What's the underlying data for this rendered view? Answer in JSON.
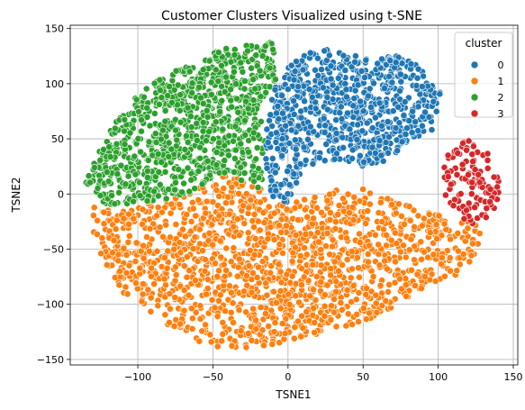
{
  "chart_data": {
    "type": "scatter",
    "title": "Customer Clusters Visualized using t-SNE",
    "xlabel": "TSNE1",
    "ylabel": "TSNE2",
    "xlim": [
      -145,
      153
    ],
    "ylim": [
      -155,
      153
    ],
    "xticks": [
      -100,
      -50,
      0,
      50,
      100,
      150
    ],
    "yticks": [
      -150,
      -100,
      -50,
      0,
      50,
      100,
      150
    ],
    "grid": true,
    "legend": {
      "title": "cluster",
      "placement": "top-right",
      "entries": [
        "0",
        "1",
        "2",
        "3"
      ]
    },
    "colors": {
      "0": "#1f77b4",
      "1": "#ff7f0e",
      "2": "#2ca02c",
      "3": "#d62728"
    },
    "series": [
      {
        "name": "0",
        "region": [
          [
            -8,
            100
          ],
          [
            0,
            118
          ],
          [
            20,
            132
          ],
          [
            40,
            128
          ],
          [
            55,
            122
          ],
          [
            75,
            126
          ],
          [
            85,
            118
          ],
          [
            95,
            108
          ],
          [
            102,
            90
          ],
          [
            100,
            70
          ],
          [
            95,
            55
          ],
          [
            80,
            45
          ],
          [
            65,
            30
          ],
          [
            48,
            25
          ],
          [
            35,
            30
          ],
          [
            20,
            30
          ],
          [
            10,
            20
          ],
          [
            5,
            5
          ],
          [
            0,
            -10
          ],
          [
            -10,
            -5
          ],
          [
            -15,
            20
          ],
          [
            -15,
            50
          ],
          [
            -12,
            80
          ]
        ],
        "count": 800
      },
      {
        "name": "1",
        "region": [
          [
            -130,
            -8
          ],
          [
            -122,
            -15
          ],
          [
            -100,
            -10
          ],
          [
            -80,
            -5
          ],
          [
            -60,
            5
          ],
          [
            -40,
            18
          ],
          [
            -20,
            8
          ],
          [
            -5,
            -10
          ],
          [
            10,
            -5
          ],
          [
            30,
            5
          ],
          [
            50,
            5
          ],
          [
            70,
            -5
          ],
          [
            90,
            -15
          ],
          [
            110,
            -20
          ],
          [
            130,
            -30
          ],
          [
            125,
            -60
          ],
          [
            115,
            -72
          ],
          [
            85,
            -88
          ],
          [
            70,
            -105
          ],
          [
            40,
            -120
          ],
          [
            10,
            -130
          ],
          [
            -20,
            -140
          ],
          [
            -50,
            -140
          ],
          [
            -70,
            -128
          ],
          [
            -90,
            -110
          ],
          [
            -110,
            -90
          ],
          [
            -125,
            -60
          ],
          [
            -130,
            -35
          ]
        ],
        "count": 1500
      },
      {
        "name": "2",
        "region": [
          [
            -135,
            10
          ],
          [
            -125,
            40
          ],
          [
            -115,
            65
          ],
          [
            -100,
            90
          ],
          [
            -85,
            105
          ],
          [
            -65,
            120
          ],
          [
            -45,
            132
          ],
          [
            -30,
            138
          ],
          [
            -10,
            140
          ],
          [
            -5,
            110
          ],
          [
            -20,
            80
          ],
          [
            -15,
            50
          ],
          [
            -15,
            20
          ],
          [
            -20,
            5
          ],
          [
            -40,
            18
          ],
          [
            -60,
            5
          ],
          [
            -80,
            -5
          ],
          [
            -100,
            -8
          ],
          [
            -122,
            -10
          ]
        ],
        "count": 900
      },
      {
        "name": "3",
        "region": [
          [
            100,
            10
          ],
          [
            108,
            45
          ],
          [
            118,
            50
          ],
          [
            128,
            45
          ],
          [
            138,
            30
          ],
          [
            142,
            5
          ],
          [
            138,
            -15
          ],
          [
            130,
            -25
          ],
          [
            120,
            -30
          ],
          [
            112,
            -25
          ],
          [
            105,
            -10
          ]
        ],
        "count": 110
      }
    ]
  }
}
